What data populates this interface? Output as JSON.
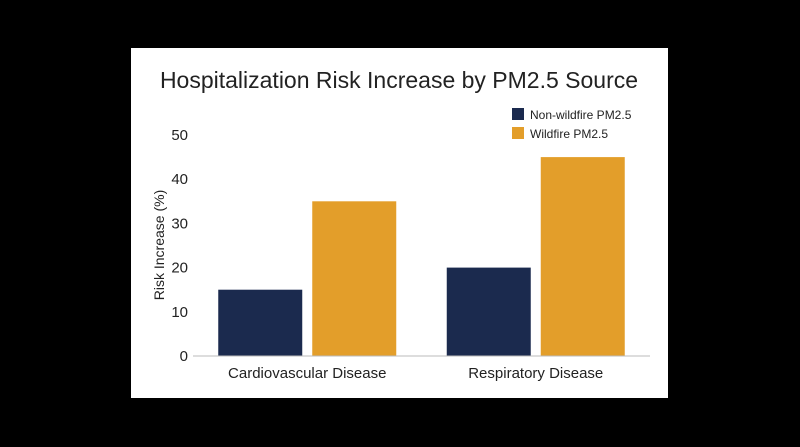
{
  "chart_data": {
    "type": "bar",
    "title": "Hospitalization Risk Increase by PM2.5 Source",
    "xlabel": "",
    "ylabel": "Risk Increase (%)",
    "ylim": [
      0,
      50
    ],
    "yticks": [
      0,
      10,
      20,
      30,
      40,
      50
    ],
    "categories": [
      "Cardiovascular Disease",
      "Respiratory Disease"
    ],
    "series": [
      {
        "name": "Non-wildfire PM2.5",
        "color": "#1b2a4e",
        "values": [
          15,
          20
        ]
      },
      {
        "name": "Wildfire PM2.5",
        "color": "#e39e2a",
        "values": [
          35,
          45
        ]
      }
    ],
    "legend_position": "top-right",
    "grid": false
  }
}
